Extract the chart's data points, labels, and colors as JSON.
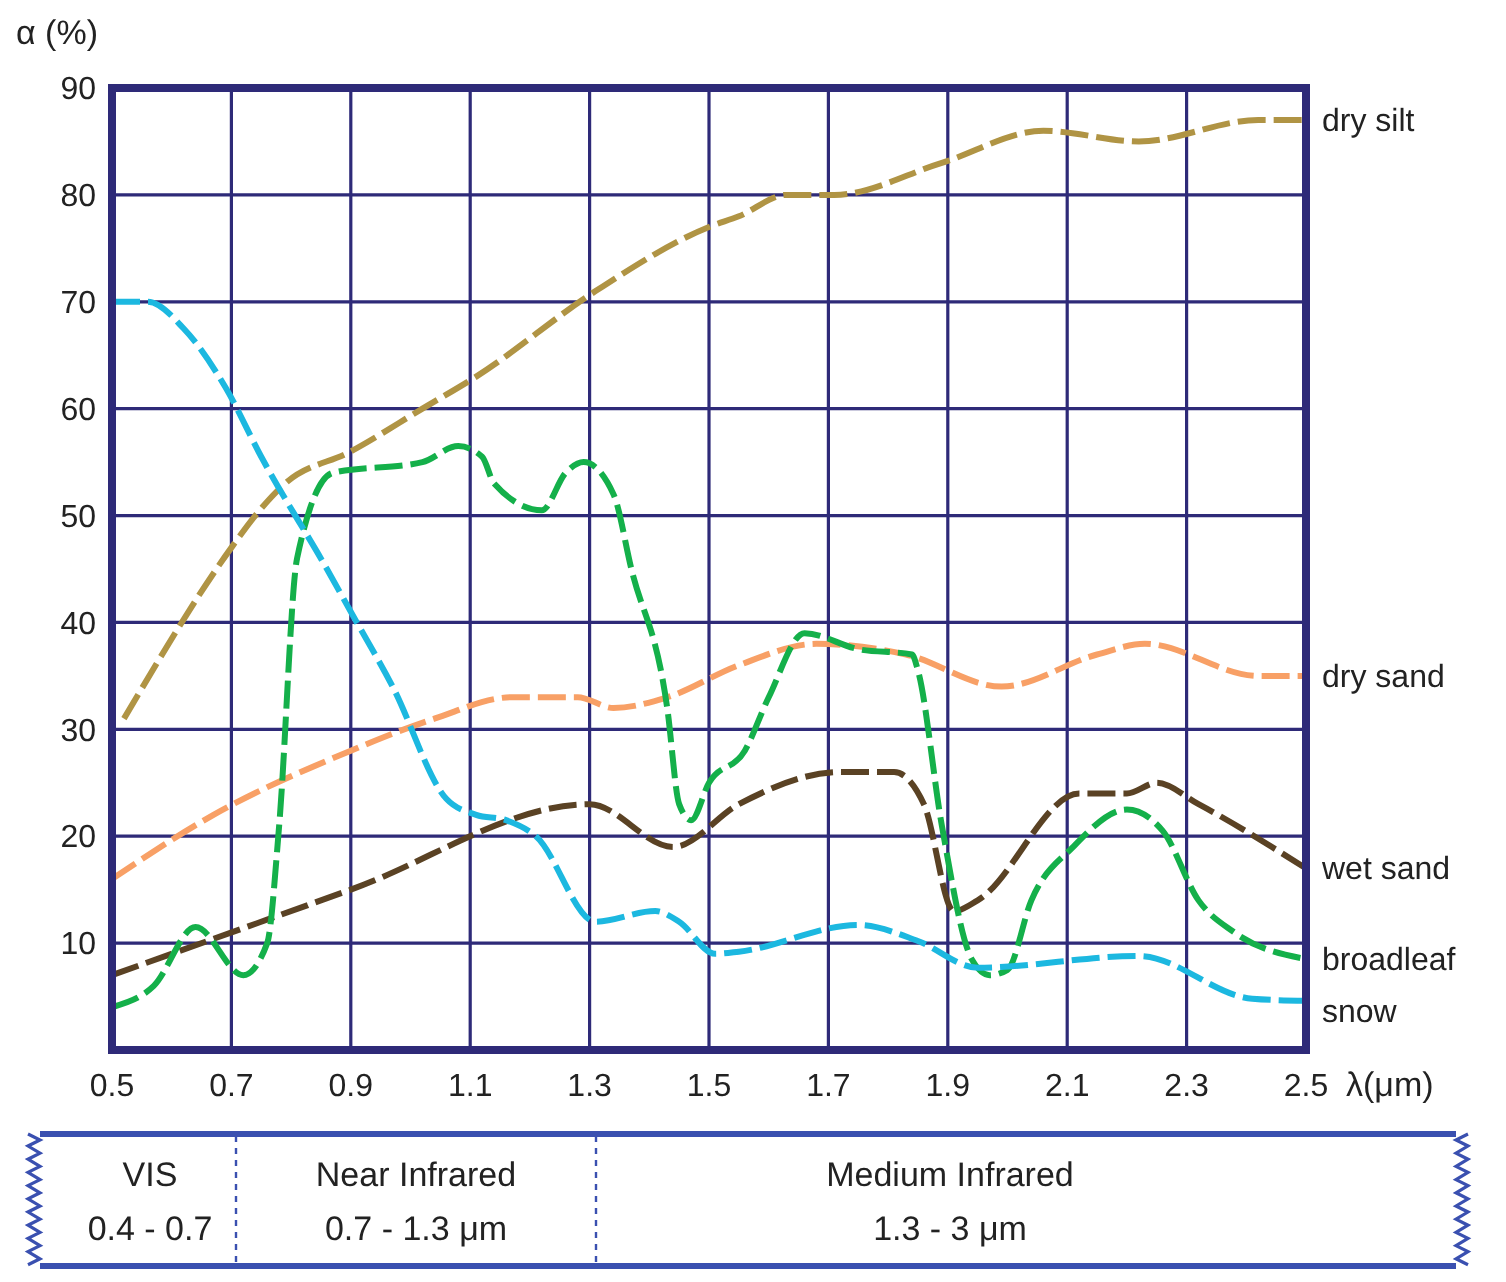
{
  "chart_data": {
    "type": "line",
    "ylabel": "α (%)",
    "xlabel": "λ(μm)",
    "xlim": [
      0.5,
      2.5
    ],
    "ylim": [
      0,
      90
    ],
    "xticks": [
      0.5,
      0.7,
      0.9,
      1.1,
      1.3,
      1.5,
      1.7,
      1.9,
      2.1,
      2.3,
      2.5
    ],
    "yticks": [
      {
        "value": 0,
        "label": null
      },
      10,
      20,
      30,
      40,
      50,
      60,
      70,
      80,
      90
    ],
    "grid": true,
    "legend": false,
    "line_style": "dashed",
    "series": [
      {
        "name": "dry silt",
        "color": "#b09444",
        "x": [
          0.52,
          0.7,
          0.74,
          0.79,
          0.9,
          1.02,
          1.11,
          1.31,
          1.5,
          1.55,
          1.63,
          1.71,
          1.89,
          2.06,
          2.22,
          2.42,
          2.5
        ],
        "values": [
          31,
          47,
          50,
          53,
          56,
          60,
          63,
          71,
          77,
          78,
          80,
          80,
          83,
          86,
          85,
          87,
          87
        ]
      },
      {
        "name": "dry sand",
        "color": "#f8a066",
        "x": [
          0.5,
          0.67,
          0.9,
          1.04,
          1.17,
          1.28,
          1.34,
          1.43,
          1.55,
          1.68,
          1.83,
          1.99,
          2.15,
          2.23,
          2.42,
          2.5
        ],
        "values": [
          16,
          22,
          28,
          31,
          33,
          33,
          32,
          33,
          36,
          38,
          37,
          34,
          37,
          38,
          35,
          35
        ]
      },
      {
        "name": "wet sand",
        "color": "#5a4224",
        "x": [
          0.5,
          0.9,
          1.3,
          1.44,
          1.55,
          1.72,
          1.81,
          1.86,
          1.91,
          1.95,
          2.12,
          2.2,
          2.25,
          2.32,
          2.5
        ],
        "values": [
          7,
          15,
          23,
          19,
          23,
          26,
          26,
          23,
          13,
          14,
          24,
          24,
          25,
          23,
          17
        ]
      },
      {
        "name": "broadleaf",
        "color": "#14b04a",
        "x": [
          0.5,
          0.57,
          0.64,
          0.72,
          0.76,
          0.78,
          0.81,
          0.87,
          1.02,
          1.08,
          1.12,
          1.14,
          1.22,
          1.26,
          1.29,
          1.34,
          1.37,
          1.43,
          1.45,
          1.47,
          1.5,
          1.56,
          1.6,
          1.66,
          1.75,
          1.84,
          1.85,
          1.89,
          1.94,
          1.97,
          2.0,
          2.04,
          2.11,
          2.2,
          2.26,
          2.32,
          2.38,
          2.5
        ],
        "values": [
          4,
          6,
          11.5,
          7,
          10,
          21,
          46,
          54,
          55,
          56.5,
          55.5,
          53,
          50.5,
          54,
          55,
          52,
          45,
          32,
          23,
          21.5,
          25,
          28,
          33,
          39,
          37.5,
          37,
          35.5,
          21,
          8.5,
          7,
          7.5,
          14,
          19,
          22.5,
          20.5,
          14,
          11,
          8.5
        ]
      },
      {
        "name": "snow",
        "color": "#1cb8e0",
        "x": [
          0.5,
          0.56,
          0.62,
          0.69,
          0.75,
          0.86,
          0.9,
          0.97,
          1.06,
          1.11,
          1.16,
          1.21,
          1.31,
          1.41,
          1.45,
          1.51,
          1.55,
          1.75,
          1.85,
          1.95,
          2.22,
          2.41,
          2.5
        ],
        "values": [
          70,
          70,
          67.5,
          62,
          55.5,
          45,
          41,
          34,
          23.5,
          22,
          21.5,
          20,
          12,
          13,
          12,
          9,
          9.2,
          11.7,
          10.2,
          7.7,
          8.8,
          4.8,
          4.6
        ]
      }
    ],
    "annotations": [
      "VIS",
      "0.4 - 0.7",
      "Near Infrared",
      "0.7 - 1.3 μm",
      "Medium Infrared",
      "1.3 - 3 μm"
    ]
  }
}
